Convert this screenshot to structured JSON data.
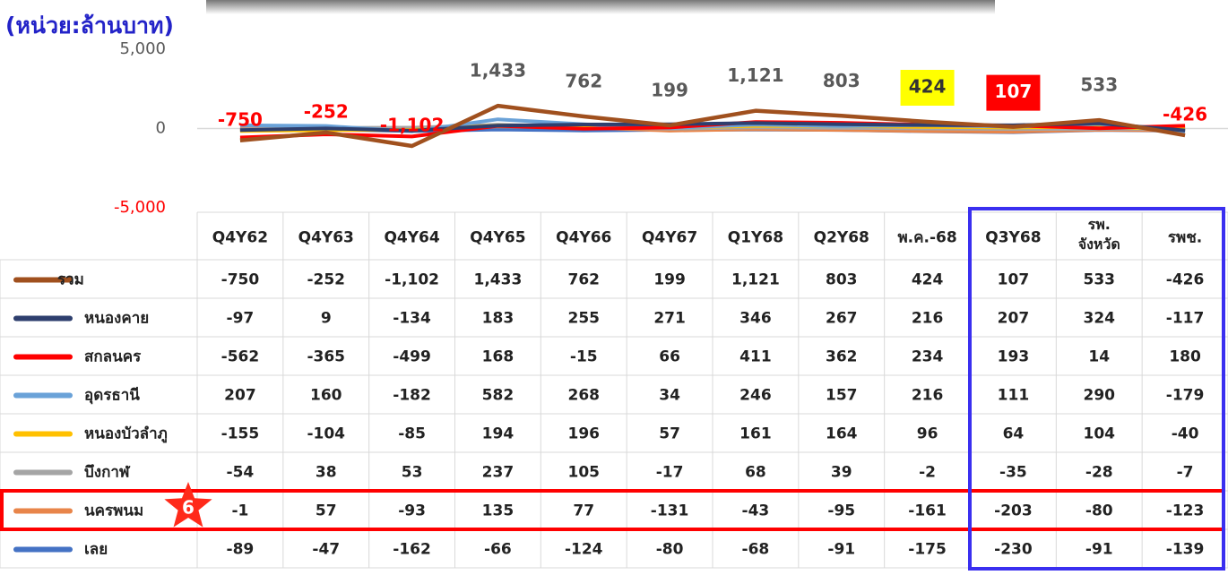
{
  "chart_data": {
    "type": "line",
    "title": "(หน่วย:ล้านบาท)",
    "categories": [
      "Q4Y62",
      "Q4Y63",
      "Q4Y64",
      "Q4Y65",
      "Q4Y66",
      "Q4Y67",
      "Q1Y68",
      "Q2Y68",
      "พ.ค.-68",
      "Q3Y68",
      "รพ.\nจังหวัด",
      "รพช."
    ],
    "ylim": [
      -5000,
      5000
    ],
    "yticks": [
      {
        "value": 5000,
        "label": "5,000"
      },
      0,
      {
        "value": -5000,
        "label": "-5,000"
      }
    ],
    "series": [
      {
        "name": "รวม",
        "color": "#a0501e",
        "values": [
          -750,
          -252,
          -1102,
          1433,
          762,
          199,
          1121,
          803,
          424,
          107,
          533,
          -426
        ],
        "value_labels": [
          "-750",
          "-252",
          "-1,102",
          "1,433",
          "762",
          "199",
          "1,121",
          "803",
          "424",
          "107",
          "533",
          "-426"
        ]
      },
      {
        "name": "หนองคาย",
        "color": "#2e3f6e",
        "values": [
          -97,
          9,
          -134,
          183,
          255,
          271,
          346,
          267,
          216,
          207,
          324,
          -117
        ]
      },
      {
        "name": "สกลนคร",
        "color": "#ff0000",
        "values": [
          -562,
          -365,
          -499,
          168,
          -15,
          66,
          411,
          362,
          234,
          193,
          14,
          180
        ]
      },
      {
        "name": "อุดรธานี",
        "color": "#6aa2d8",
        "values": [
          207,
          160,
          -182,
          582,
          268,
          34,
          246,
          157,
          216,
          111,
          290,
          -179
        ]
      },
      {
        "name": "หนองบัวลำภู",
        "color": "#ffc000",
        "values": [
          -155,
          -104,
          -85,
          194,
          196,
          57,
          161,
          164,
          96,
          64,
          104,
          -40
        ]
      },
      {
        "name": "บึงกาฬ",
        "color": "#a5a5a5",
        "values": [
          -54,
          38,
          53,
          237,
          105,
          -17,
          68,
          39,
          -2,
          -35,
          -28,
          -7
        ]
      },
      {
        "name": "นครพนม",
        "color": "#e8854a",
        "values": [
          -1,
          57,
          -93,
          135,
          77,
          -131,
          -43,
          -95,
          -161,
          -203,
          -80,
          -123
        ]
      },
      {
        "name": "เลย",
        "color": "#4472c4",
        "values": [
          -89,
          -47,
          -162,
          -66,
          -124,
          -80,
          -68,
          -91,
          -175,
          -230,
          -91,
          -139
        ]
      }
    ],
    "highlights": [
      {
        "index": 8,
        "color": "#ffff00"
      },
      {
        "index": 9,
        "color": "#ff0000"
      }
    ],
    "annotation": "6"
  }
}
